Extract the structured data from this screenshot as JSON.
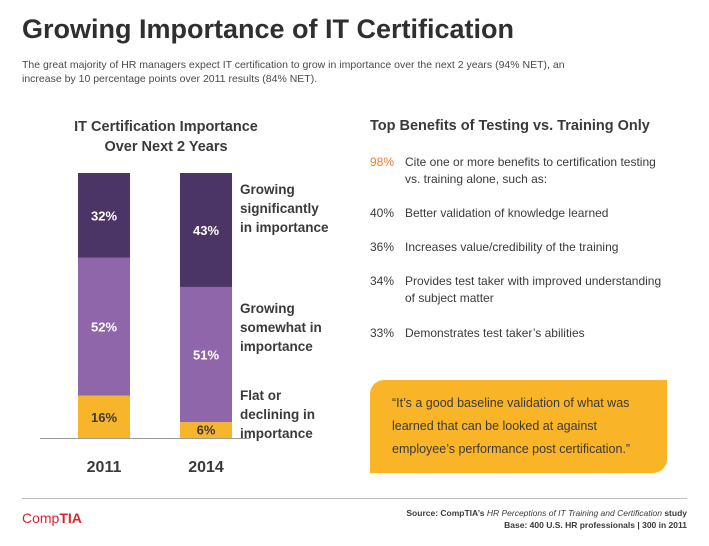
{
  "title": "Growing Importance of IT Certification",
  "subtitle": "The great majority of HR managers expect IT certification to grow in importance over the next 2 years (94% NET), an increase by 10 percentage points over 2011 results (84% NET).",
  "chart_title_line1": "IT Certification Importance",
  "chart_title_line2": "Over Next 2 Years",
  "colors": {
    "growing_significantly": "#4b3566",
    "growing_somewhat": "#9066ab",
    "flat_declining": "#f7b52c",
    "accent": "#ee7d2d"
  },
  "chart_data": {
    "type": "bar",
    "stacked": true,
    "categories": [
      "2011",
      "2014"
    ],
    "series": [
      {
        "name_lines": [
          "Flat or",
          "declining in",
          "importance"
        ],
        "values": [
          16,
          6
        ]
      },
      {
        "name_lines": [
          "Growing",
          "somewhat in",
          "importance"
        ],
        "values": [
          52,
          51
        ]
      },
      {
        "name_lines": [
          "Growing",
          "significantly",
          "in importance"
        ],
        "values": [
          32,
          43
        ]
      }
    ],
    "data_labels": [
      [
        "16%",
        "6%"
      ],
      [
        "52%",
        "51%"
      ],
      [
        "32%",
        "43%"
      ]
    ],
    "ylim": [
      0,
      100
    ]
  },
  "benefits_title": "Top Benefits of Testing vs. Training Only",
  "benefits": [
    {
      "pct": "98%",
      "text": "Cite one or more benefits to certification testing vs. training alone, such as:"
    },
    {
      "pct": "40%",
      "text": "Better validation of knowledge learned"
    },
    {
      "pct": "36%",
      "text": "Increases value/credibility of the training"
    },
    {
      "pct": "34%",
      "text": "Provides test taker with improved understanding of subject matter"
    },
    {
      "pct": "33%",
      "text": "Demonstrates test taker’s abilities"
    }
  ],
  "quote": "“It’s a good baseline validation of what was learned that can be looked at against employee’s performance post certification.”",
  "logo": {
    "pre": "Comp",
    "post": "TIA"
  },
  "source": {
    "line1_prefix": "Source: CompTIA’s ",
    "line1_title": "HR Perceptions of IT Training and Certification",
    "line1_suffix": " study",
    "line2": "Base: 400 U.S. HR professionals | 300 in 2011"
  }
}
